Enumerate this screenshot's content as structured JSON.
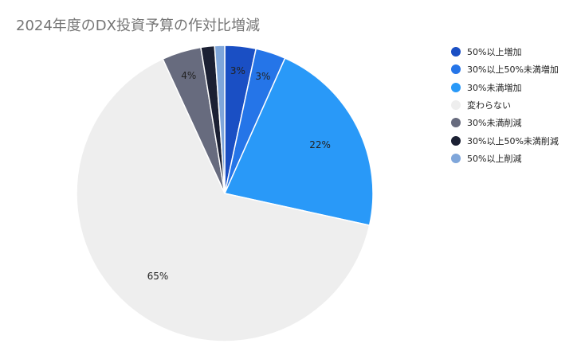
{
  "chart_data": {
    "type": "pie",
    "title": "2024年度のDX投資予算の作対比増減",
    "legend_position": "right",
    "categories": [
      "50%以上増加",
      "30%以上50%未満増加",
      "30%未満増加",
      "変わらない",
      "30%未満削減",
      "30%以上50%未満削減",
      "50%以上削減"
    ],
    "values": [
      3.4,
      3.3,
      21.9,
      65.0,
      4.3,
      1.5,
      1.1
    ],
    "data_labels": [
      "3%",
      "3%",
      "22%",
      "65%",
      "4%",
      "",
      ""
    ],
    "colors": [
      "#1a4fc4",
      "#2575e8",
      "#2999f8",
      "#eeeeee",
      "#676b7e",
      "#1b2033",
      "#7fa6da"
    ]
  }
}
